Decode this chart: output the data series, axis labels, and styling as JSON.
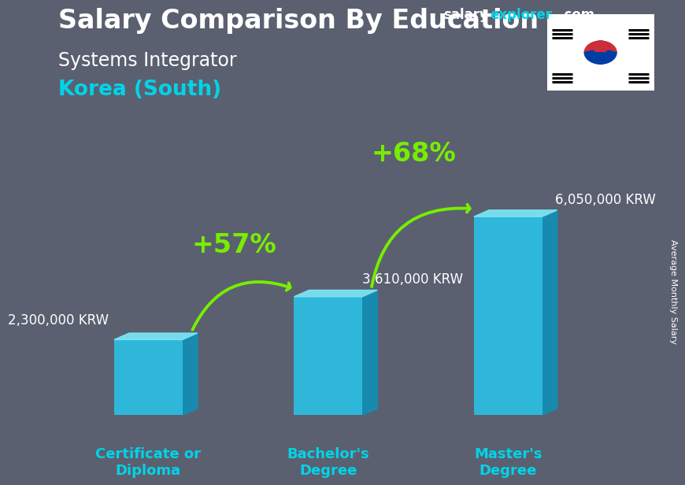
{
  "title_main": "Salary Comparison By Education",
  "subtitle_job": "Systems Integrator",
  "subtitle_country": "Korea (South)",
  "watermark_salary": "salary",
  "watermark_explorer": "explorer",
  "watermark_com": ".com",
  "ylabel": "Average Monthly Salary",
  "categories": [
    "Certificate or\nDiploma",
    "Bachelor's\nDegree",
    "Master's\nDegree"
  ],
  "values": [
    2300000,
    3610000,
    6050000
  ],
  "value_labels": [
    "2,300,000 KRW",
    "3,610,000 KRW",
    "6,050,000 KRW"
  ],
  "pct_labels": [
    "+57%",
    "+68%"
  ],
  "bar_front_color": "#29c4e8",
  "bar_side_color": "#1090b8",
  "bar_top_color": "#7de8f8",
  "bg_color": "#5a6070",
  "text_color_white": "#ffffff",
  "text_color_cyan": "#00d4e8",
  "text_color_green": "#77ee00",
  "title_fontsize": 24,
  "subtitle_job_fontsize": 17,
  "subtitle_country_fontsize": 19,
  "value_label_fontsize": 12,
  "pct_label_fontsize": 24,
  "cat_label_fontsize": 13,
  "watermark_fontsize": 12,
  "ylim_max": 8000000,
  "bar_width": 0.38,
  "bar_gap": 1.0
}
